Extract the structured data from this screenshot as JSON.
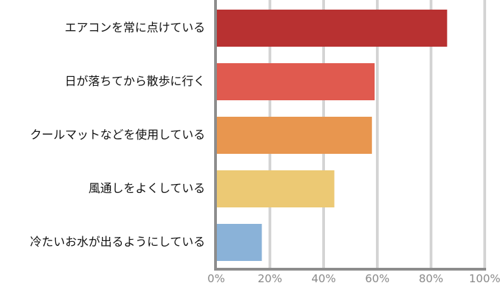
{
  "chart_data": {
    "type": "bar",
    "orientation": "horizontal",
    "categories": [
      "エアコンを常に点けている",
      "日が落ちてから散歩に行く",
      "クールマットなどを使用している",
      "風通しをよくしている",
      "冷たいお水が出るようにしている"
    ],
    "values": [
      86,
      59,
      58,
      44,
      17
    ],
    "colors": [
      "#b83131",
      "#e05a4f",
      "#e8964f",
      "#ecc974",
      "#8ab2d8"
    ],
    "xlim": [
      0,
      100
    ],
    "xticks": [
      0,
      20,
      40,
      60,
      80,
      100
    ],
    "tick_suffix": "%",
    "grid": true,
    "legend": "none",
    "title": "",
    "xlabel": "",
    "ylabel": ""
  }
}
